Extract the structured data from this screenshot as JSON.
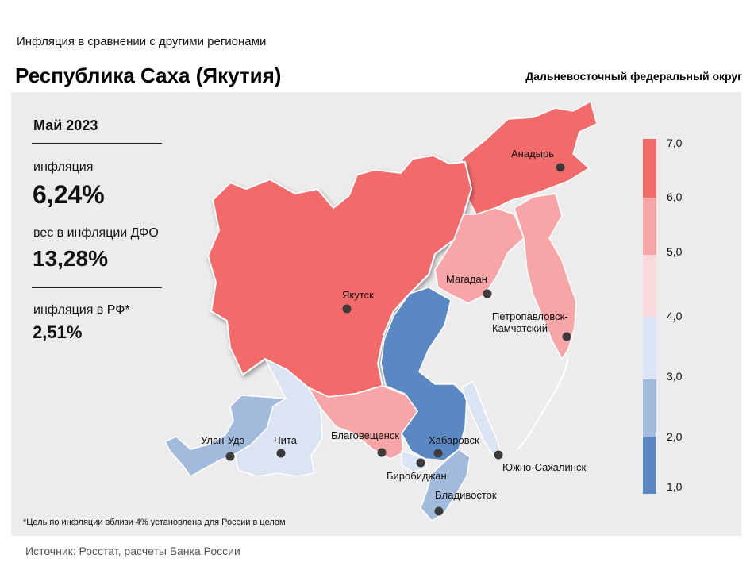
{
  "header": {
    "subtitle": "Инфляция  в сравнении  с другими регионами",
    "title": "Республика Саха (Якутия)",
    "district": "Дальневосточный федеральный округ"
  },
  "stats": {
    "period": "Май 2023",
    "inflation_label": "инфляция",
    "inflation_value": "6,24%",
    "weight_label": "вес в инфляции ДФО",
    "weight_value": "13,28%",
    "rf_label": "инфляция  в РФ*",
    "rf_value": "2,51%"
  },
  "legend": {
    "ticks": [
      "7,0",
      "6,0",
      "5,0",
      "4,0",
      "3,0",
      "2,0",
      "1,0"
    ],
    "colors": [
      "#f26b6b",
      "#f7a5a7",
      "#fbdadd",
      "#dbe4f3",
      "#a2badc",
      "#5a88c3"
    ]
  },
  "cities": [
    {
      "name": "Анадырь"
    },
    {
      "name": "Якутск"
    },
    {
      "name": "Магадан"
    },
    {
      "name": "Петропавловск-"
    },
    {
      "name": "Камчатский"
    },
    {
      "name": "Улан-Удэ"
    },
    {
      "name": "Чита"
    },
    {
      "name": "Благовещенск"
    },
    {
      "name": "Хабаровск"
    },
    {
      "name": "Биробиджан"
    },
    {
      "name": "Южно-Сахалинск"
    },
    {
      "name": "Владивосток"
    }
  ],
  "map_colors": {
    "high": "#f26b6b",
    "mid_high": "#f7a5a7",
    "mid": "#fbdadd",
    "low_mid": "#dbe4f3",
    "low": "#a2badc",
    "lowest": "#5a88c3"
  },
  "footnote": "*Цель по инфляции вблизи 4% установлена для России в целом",
  "source": "Источник:  Росстат,  расчеты Банка России"
}
